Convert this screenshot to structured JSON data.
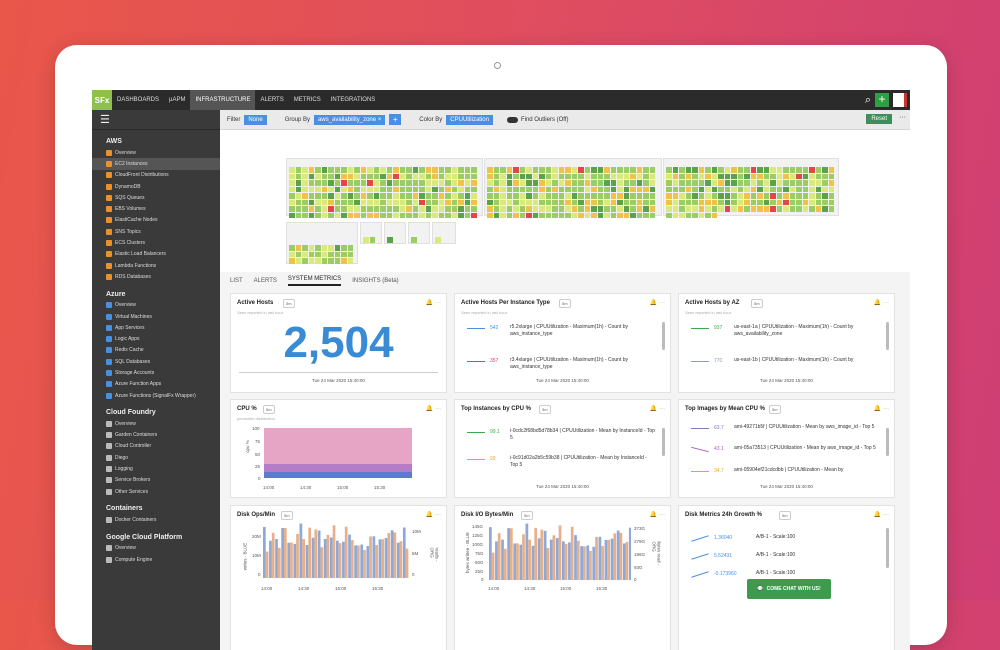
{
  "nav": {
    "logo": "SFx",
    "items": [
      "DASHBOARDS",
      "µAPM",
      "INFRASTRUCTURE",
      "ALERTS",
      "METRICS",
      "INTEGRATIONS"
    ],
    "active": "INFRASTRUCTURE"
  },
  "filterbar": {
    "filter_label": "Filter",
    "filter_value": "None",
    "groupby_label": "Group By",
    "groupby_value": "aws_availability_zone ×",
    "plus": "+",
    "colorby_label": "Color By",
    "colorby_value": "CPUUtilization",
    "outliers": "Find Outliers (Off)",
    "reset": "Reset",
    "more": "···"
  },
  "sidebar": {
    "sections": [
      {
        "title": "AWS",
        "items": [
          "Overview",
          "EC2 Instances",
          "CloudFront Distributions",
          "DynamoDB",
          "SQS Queues",
          "EBS Volumes",
          "ElastiCache Nodes",
          "SNS Topics",
          "ECS Clusters",
          "Elastic Load Balancers",
          "Lambda Functions",
          "RDS Databases"
        ]
      },
      {
        "title": "Azure",
        "items": [
          "Overview",
          "Virtual Machines",
          "App Services",
          "Logic Apps",
          "Redis Cache",
          "SQL Databases",
          "Storage Accounts",
          "Azure Function Apps",
          "Azure Functions (SignalFx Wrapper)"
        ]
      },
      {
        "title": "Cloud Foundry",
        "items": [
          "Overview",
          "Garden Containers",
          "Cloud Controller",
          "Diego",
          "Logging",
          "Service Brokers",
          "Other Services"
        ]
      },
      {
        "title": "Containers",
        "items": [
          "Docker Containers"
        ]
      },
      {
        "title": "Google Cloud Platform",
        "items": [
          "Overview",
          "Compute Engine"
        ]
      }
    ],
    "active_item": "EC2 Instances"
  },
  "tabs": [
    "LIST",
    "ALERTS",
    "SYSTEM METRICS",
    "INSIGHTS (Beta)"
  ],
  "active_tab": "SYSTEM METRICS",
  "colors": {
    "healthy": "#9ccd64",
    "light": "#d9e97a",
    "warn": "#f0c348",
    "hot": "#e0464a",
    "green_dark": "#5aa34a"
  },
  "cards": {
    "active_hosts": {
      "title": "Active Hosts",
      "badge": "5m",
      "sub": "Seen reported in last hour",
      "value": "2,504",
      "date": "Tue 24 Mar 2020 15:40:00"
    },
    "per_instance": {
      "title": "Active Hosts Per Instance Type",
      "badge": "5m",
      "sub": "Seen reported in last hour",
      "date": "Tue 24 Mar 2020 15:40:00",
      "rows": [
        {
          "val": "542",
          "desc": "r5.2xlarge | CPUUtilization - Maximum(1h) - Count by aws_instance_type",
          "color": "#4a90e2"
        },
        {
          "val": "357",
          "desc": "r3.4xlarge | CPUUtilization - Maximum(1h) - Count by aws_instance_type",
          "color": "#d63c6f"
        }
      ]
    },
    "by_az": {
      "title": "Active Hosts by AZ",
      "badge": "5m",
      "sub": "Seen reported in last hour",
      "date": "Tue 24 Mar 2020 15:40:00",
      "rows": [
        {
          "val": "937",
          "desc": "us-east-1a | CPUUtilization - Maximum(1h) - Count by aws_availability_zone",
          "color": "#3fa84a"
        },
        {
          "val": "770",
          "desc": "us-east-1b | CPUUtilization - Maximum(1h) - Count by",
          "color": "#8aa0b6"
        }
      ]
    },
    "cpu": {
      "title": "CPU %",
      "badge": "5m",
      "sub": "percentile distribution",
      "ylabel": "cpu %",
      "yticks": [
        "100",
        "75",
        "50",
        "25",
        "0"
      ],
      "xticks": [
        "14:00",
        "14:30",
        "15:00",
        "15:30"
      ]
    },
    "top_cpu": {
      "title": "Top Instances by CPU %",
      "badge": "5m",
      "date": "Tue 24 Mar 2020 15:40:00",
      "rows": [
        {
          "val": "99.1",
          "desc": "i-0cdc2f68bd5d78b34 | CPUUtilization - Mean by InstanceId - Top 5",
          "color": "#3fa84a"
        },
        {
          "val": "99",
          "desc": "i-0c91d02a2b5c59b38 | CPUUtilization - Mean by InstanceId - Top 5",
          "color": "#f0a030"
        }
      ]
    },
    "top_images": {
      "title": "Top Images by Mean CPU %",
      "badge": "5m",
      "date": "Tue 24 Mar 2020 15:40:00",
      "rows": [
        {
          "val": "63.7",
          "desc": "ami-49271b5f | CPUUtilization - Mean by aws_image_id - Top 5",
          "color": "#8a76c4"
        },
        {
          "val": "43.1",
          "desc": "ami-05a73513 | CPUUtilization - Mean by aws_image_id - Top 5",
          "color": "#a25ec8"
        },
        {
          "val": "34.7",
          "desc": "ami-05904ef21cdcdbb | CPUUtilization - Mean by",
          "color": "#f0a030"
        }
      ]
    },
    "disk_ops": {
      "title": "Disk Ops/Min",
      "badge": "5m",
      "yleft": [
        "20M",
        "10M",
        "0"
      ],
      "yright": [
        "10M",
        "5M",
        "0"
      ],
      "lab_left": "writes - BLUE",
      "lab_right": "reads - ORG",
      "xticks": [
        "14:00",
        "14:30",
        "15:00",
        "15:30"
      ]
    },
    "disk_io": {
      "title": "Disk I/O Bytes/Min",
      "badge": "5m",
      "yleft": [
        "145G",
        "125G",
        "100G",
        "75G",
        "50G",
        "25G",
        "0"
      ],
      "yright": [
        "373G",
        "279G",
        "186G",
        "93G",
        "0"
      ],
      "lab_left": "bytes written - BLUE",
      "lab_right": "bytes read - ORG",
      "xticks": [
        "14:00",
        "14:30",
        "15:00",
        "15:30"
      ]
    },
    "disk_growth": {
      "title": "Disk Metrics 24h Growth %",
      "badge": "5m",
      "rows": [
        {
          "val": "1.36040",
          "desc": "A/B-1 - Scale:100",
          "color": "#4a90e2"
        },
        {
          "val": "5.52431",
          "desc": "A/B-1 - Scale:100",
          "color": "#4a90e2"
        },
        {
          "val": "-0.173960",
          "desc": "A/B-1 - Scale:100",
          "color": "#4a90e2"
        }
      ]
    }
  },
  "chat": {
    "label": "COME CHAT WITH US!"
  }
}
